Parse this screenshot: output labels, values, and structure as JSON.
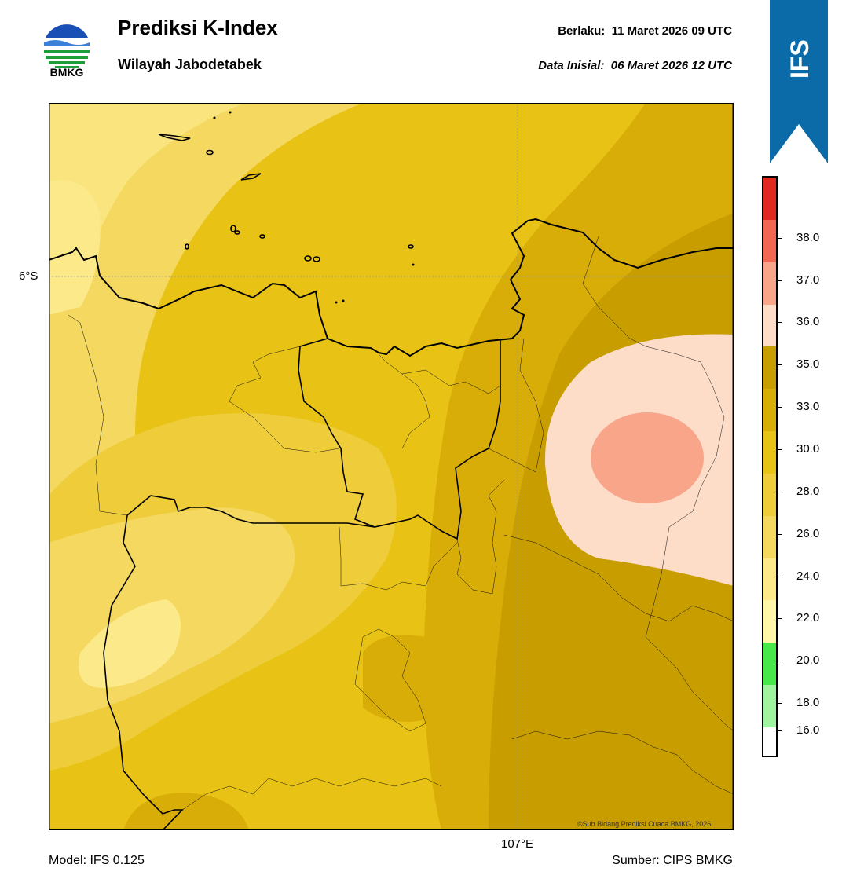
{
  "header": {
    "logo_text": "BMKG",
    "title": "Prediksi K-Index",
    "subtitle": "Wilayah Jabodetabek",
    "valid_label": "Berlaku:",
    "valid_value": "11 Maret 2026 09 UTC",
    "init_label": "Data Inisial:",
    "init_value": "06 Maret 2026 12 UTC"
  },
  "ribbon": {
    "text": "IFS",
    "color": "#0b6aa8"
  },
  "map": {
    "lat_label": "6°S",
    "lon_label": "107°E",
    "credit": "©Sub Bidang Prediksi Cuaca BMKG, 2026"
  },
  "footer": {
    "model": "Model: IFS 0.125",
    "source": "Sumber: CIPS BMKG"
  },
  "colorbar": {
    "levels": [
      {
        "label": "16.0",
        "color": "#ffffff"
      },
      {
        "label": "18.0",
        "color": "#9ef59e"
      },
      {
        "label": "20.0",
        "color": "#47e84a"
      },
      {
        "label": "22.0",
        "color": "#fff6a8"
      },
      {
        "label": "24.0",
        "color": "#fbe98a"
      },
      {
        "label": "26.0",
        "color": "#f4d860"
      },
      {
        "label": "28.0",
        "color": "#efcc3a"
      },
      {
        "label": "30.0",
        "color": "#e8c315"
      },
      {
        "label": "33.0",
        "color": "#d9ad08"
      },
      {
        "label": "35.0",
        "color": "#c89d00"
      },
      {
        "label": "36.0",
        "color": "#fddcc8"
      },
      {
        "label": "37.0",
        "color": "#f8a58a"
      },
      {
        "label": "38.0",
        "color": "#f16850"
      },
      {
        "label": "",
        "color": "#e02a20"
      }
    ]
  }
}
